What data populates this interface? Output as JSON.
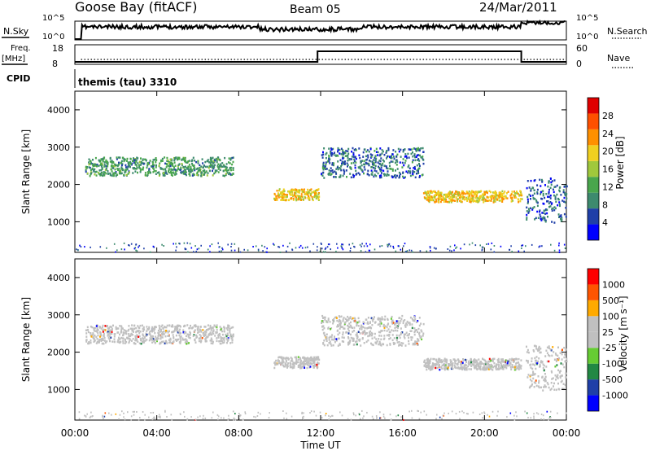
{
  "header": {
    "station": "Goose Bay (fitACF)",
    "beam": "Beam 05",
    "date": "24/Mar/2011"
  },
  "top_panels": {
    "nsky_label": "N.Sky",
    "nsky_ticks": [
      "10^5",
      "10^0"
    ],
    "nsearch_label": "N.Search",
    "nsearch_ticks": [
      "10^5",
      "10^0"
    ],
    "freq_label": "Freq.",
    "freq_unit": "[MHz]",
    "freq_ticks": [
      "18",
      "8"
    ],
    "nave_label": "Nave",
    "nave_ticks": [
      "60",
      "0"
    ],
    "cpid_label": "CPID",
    "cpid_text": "themis (tau) 3310"
  },
  "colors": {
    "power_scale": [
      "#0000ff",
      "#1f3fa8",
      "#3d8a6e",
      "#49a64c",
      "#a0c83c",
      "#f0d020",
      "#ff9000",
      "#ff5000",
      "#e00000"
    ],
    "velocity_scale": [
      "#ff0000",
      "#ff5500",
      "#ffaa00",
      "#c0c0c0",
      "#c0c0c0",
      "#66cc33",
      "#228844",
      "#1f3fa8",
      "#0000ff"
    ]
  },
  "chart_data": [
    {
      "type": "heatmap",
      "panel": "power",
      "ylabel": "Slant Range [km]",
      "yticks": [
        1000,
        2000,
        3000,
        4000
      ],
      "ylim": [
        180,
        4500
      ],
      "xlim_hours": [
        0,
        24
      ],
      "colorbar_label": "Power [dB]",
      "colorbar_ticks": [
        "4",
        "8",
        "12",
        "16",
        "20",
        "24",
        "28"
      ],
      "colorbar_range": [
        0,
        32
      ],
      "bands": [
        {
          "t_start": 0.5,
          "t_end": 7.7,
          "range_km": [
            2250,
            2750
          ],
          "power_db": 10
        },
        {
          "t_start": 9.7,
          "t_end": 11.9,
          "range_km": [
            1600,
            1900
          ],
          "power_db": 20
        },
        {
          "t_start": 12.0,
          "t_end": 17.0,
          "range_km": [
            2200,
            3000
          ],
          "power_db": 6
        },
        {
          "t_start": 17.0,
          "t_end": 21.8,
          "range_km": [
            1550,
            1850
          ],
          "power_db": 20
        },
        {
          "t_start": 22.0,
          "t_end": 24.0,
          "range_km": [
            1000,
            2200
          ],
          "power_db": 5
        }
      ]
    },
    {
      "type": "heatmap",
      "panel": "velocity",
      "ylabel": "Slant Range [km]",
      "yticks": [
        1000,
        2000,
        3000,
        4000
      ],
      "ylim": [
        180,
        4500
      ],
      "xlim_hours": [
        0,
        24
      ],
      "colorbar_label": "Velocity [m s⁻¹]",
      "colorbar_ticks": [
        "1000",
        "500",
        "100",
        "25",
        "-25",
        "-100",
        "-500",
        "-1000"
      ],
      "bands": [
        {
          "t_start": 0.5,
          "t_end": 7.7,
          "range_km": [
            2250,
            2750
          ],
          "velocity": 0
        },
        {
          "t_start": 9.7,
          "t_end": 11.9,
          "range_km": [
            1600,
            1900
          ],
          "velocity": 0
        },
        {
          "t_start": 12.0,
          "t_end": 17.0,
          "range_km": [
            2200,
            3000
          ],
          "velocity": 0
        },
        {
          "t_start": 17.0,
          "t_end": 21.8,
          "range_km": [
            1550,
            1850
          ],
          "velocity": 0
        },
        {
          "t_start": 22.0,
          "t_end": 24.0,
          "range_km": [
            1000,
            2200
          ],
          "velocity": 0
        }
      ]
    }
  ],
  "xaxis": {
    "ticks": [
      "00:00",
      "04:00",
      "08:00",
      "12:00",
      "16:00",
      "20:00",
      "00:00"
    ],
    "label": "Time UT"
  }
}
